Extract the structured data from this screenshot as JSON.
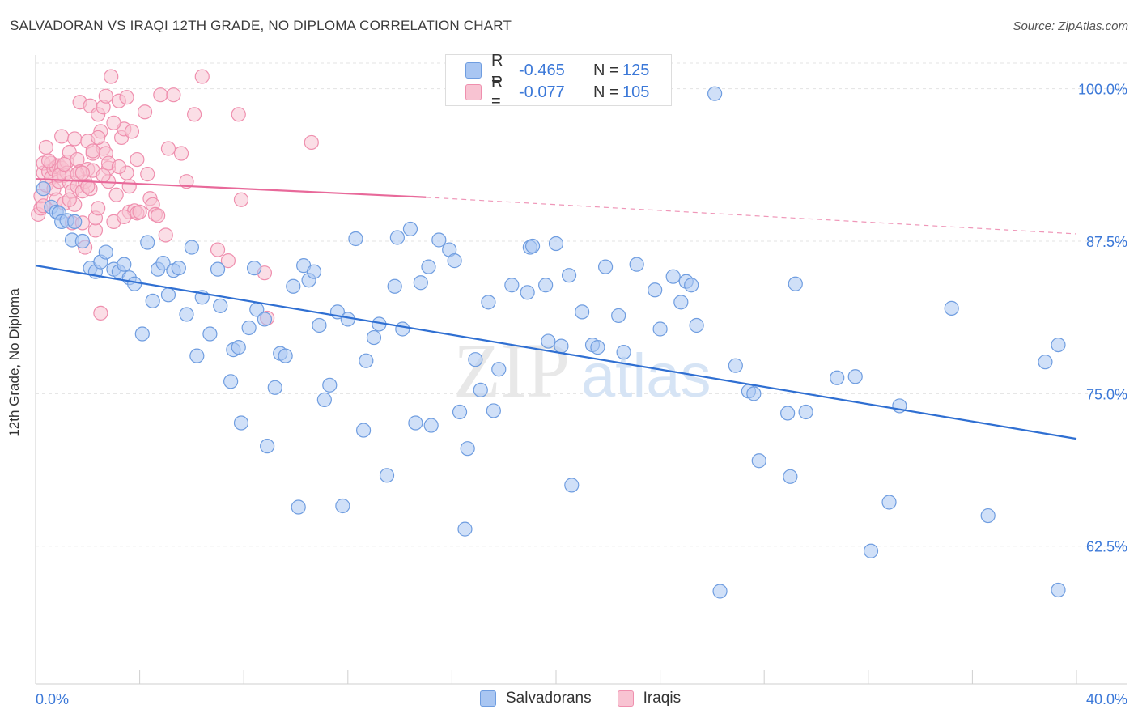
{
  "title": "SALVADORAN VS IRAQI 12TH GRADE, NO DIPLOMA CORRELATION CHART",
  "source": "Source: ZipAtlas.com",
  "watermark": {
    "zip": "ZIP",
    "atlas": "atlas"
  },
  "legend": {
    "rows": [
      {
        "r_label": "R =",
        "r_value": "-0.465",
        "n_label": "N =",
        "n_value": "125",
        "color": "#a9c6f2",
        "border": "#6f9de0"
      },
      {
        "r_label": "R =",
        "r_value": "-0.077",
        "n_label": "N =",
        "n_value": "105",
        "color": "#f8c3d2",
        "border": "#ef8fae"
      }
    ]
  },
  "bottom_legend": [
    {
      "label": "Salvadorans",
      "color": "#a9c6f2",
      "border": "#6f9de0"
    },
    {
      "label": "Iraqis",
      "color": "#f8c3d2",
      "border": "#ef8fae"
    }
  ],
  "chart_data": {
    "type": "scatter",
    "ylabel": "12th Grade, No Diploma",
    "xlim": [
      0,
      40
    ],
    "ylim": [
      51.2,
      102.1
    ],
    "x_tick_labels": [
      "0.0%",
      "40.0%"
    ],
    "y_ticks": [
      {
        "value": 100.0,
        "label": "100.0%"
      },
      {
        "value": 87.5,
        "label": "87.5%"
      },
      {
        "value": 75.0,
        "label": "75.0%"
      },
      {
        "value": 62.5,
        "label": "62.5%"
      }
    ],
    "grid": true,
    "series": [
      {
        "name": "Salvadorans",
        "color": "#6f9de0",
        "fill": "#a9c6f2",
        "trend": {
          "x0": 0,
          "y0": 85.5,
          "x1": 40,
          "y1": 71.3,
          "dashed_to": null
        },
        "points": [
          [
            0.3,
            91.8
          ],
          [
            0.6,
            90.3
          ],
          [
            0.8,
            89.9
          ],
          [
            0.9,
            89.8
          ],
          [
            1.0,
            89.1
          ],
          [
            1.2,
            89.2
          ],
          [
            1.4,
            87.6
          ],
          [
            1.5,
            89.1
          ],
          [
            1.8,
            87.5
          ],
          [
            2.1,
            85.3
          ],
          [
            2.3,
            85.0
          ],
          [
            2.5,
            85.8
          ],
          [
            2.7,
            86.6
          ],
          [
            3.0,
            85.2
          ],
          [
            3.2,
            85.0
          ],
          [
            3.4,
            85.6
          ],
          [
            3.6,
            84.5
          ],
          [
            3.8,
            84.0
          ],
          [
            4.1,
            79.9
          ],
          [
            4.3,
            87.4
          ],
          [
            4.5,
            82.6
          ],
          [
            4.7,
            85.2
          ],
          [
            4.9,
            85.7
          ],
          [
            5.1,
            83.1
          ],
          [
            5.3,
            85.1
          ],
          [
            5.5,
            85.3
          ],
          [
            5.8,
            81.5
          ],
          [
            6.0,
            87.0
          ],
          [
            6.2,
            78.1
          ],
          [
            6.4,
            82.9
          ],
          [
            6.7,
            79.9
          ],
          [
            7.0,
            85.2
          ],
          [
            7.1,
            82.2
          ],
          [
            7.5,
            76.0
          ],
          [
            7.6,
            78.6
          ],
          [
            7.8,
            78.8
          ],
          [
            7.9,
            72.6
          ],
          [
            8.2,
            80.4
          ],
          [
            8.4,
            85.3
          ],
          [
            8.5,
            81.9
          ],
          [
            8.8,
            81.1
          ],
          [
            8.9,
            70.7
          ],
          [
            9.2,
            75.5
          ],
          [
            9.4,
            78.3
          ],
          [
            9.6,
            78.1
          ],
          [
            9.9,
            83.8
          ],
          [
            10.1,
            65.7
          ],
          [
            10.3,
            85.5
          ],
          [
            10.5,
            84.3
          ],
          [
            10.7,
            85.0
          ],
          [
            10.9,
            80.6
          ],
          [
            11.1,
            74.5
          ],
          [
            11.3,
            75.7
          ],
          [
            11.6,
            81.7
          ],
          [
            11.8,
            65.8
          ],
          [
            12.0,
            81.1
          ],
          [
            12.3,
            87.7
          ],
          [
            12.6,
            72.0
          ],
          [
            12.7,
            77.7
          ],
          [
            13.0,
            79.6
          ],
          [
            13.2,
            80.7
          ],
          [
            13.5,
            68.3
          ],
          [
            13.8,
            83.8
          ],
          [
            13.9,
            87.8
          ],
          [
            14.1,
            80.3
          ],
          [
            14.4,
            88.5
          ],
          [
            14.6,
            72.6
          ],
          [
            14.8,
            84.1
          ],
          [
            15.1,
            85.4
          ],
          [
            15.2,
            72.4
          ],
          [
            15.5,
            87.6
          ],
          [
            15.9,
            86.8
          ],
          [
            16.1,
            85.9
          ],
          [
            16.3,
            73.5
          ],
          [
            16.5,
            63.9
          ],
          [
            16.6,
            70.5
          ],
          [
            16.9,
            77.8
          ],
          [
            17.1,
            75.3
          ],
          [
            17.4,
            82.5
          ],
          [
            17.6,
            73.6
          ],
          [
            17.8,
            77.0
          ],
          [
            18.3,
            83.9
          ],
          [
            18.9,
            83.3
          ],
          [
            19.0,
            87.0
          ],
          [
            19.1,
            87.1
          ],
          [
            19.6,
            83.9
          ],
          [
            19.7,
            79.3
          ],
          [
            20.0,
            87.3
          ],
          [
            20.2,
            78.9
          ],
          [
            20.5,
            84.7
          ],
          [
            20.6,
            67.5
          ],
          [
            21.0,
            81.7
          ],
          [
            21.4,
            79.0
          ],
          [
            21.6,
            78.8
          ],
          [
            21.9,
            85.4
          ],
          [
            22.4,
            81.4
          ],
          [
            22.6,
            78.4
          ],
          [
            23.1,
            85.6
          ],
          [
            23.8,
            83.5
          ],
          [
            24.0,
            80.3
          ],
          [
            24.5,
            84.6
          ],
          [
            24.8,
            82.5
          ],
          [
            25.0,
            84.2
          ],
          [
            25.2,
            83.9
          ],
          [
            25.4,
            80.6
          ],
          [
            26.1,
            99.6
          ],
          [
            26.3,
            58.8
          ],
          [
            26.9,
            77.3
          ],
          [
            27.4,
            75.2
          ],
          [
            27.6,
            75.0
          ],
          [
            27.8,
            69.5
          ],
          [
            28.9,
            73.4
          ],
          [
            29.0,
            68.2
          ],
          [
            29.2,
            84.0
          ],
          [
            29.6,
            73.5
          ],
          [
            30.8,
            76.3
          ],
          [
            31.5,
            76.4
          ],
          [
            32.1,
            62.1
          ],
          [
            32.8,
            66.1
          ],
          [
            33.2,
            74.0
          ],
          [
            35.2,
            82.0
          ],
          [
            36.6,
            65.0
          ],
          [
            38.8,
            77.6
          ],
          [
            39.3,
            79.0
          ],
          [
            39.3,
            58.9
          ]
        ]
      },
      {
        "name": "Iraqis",
        "color": "#ef8fae",
        "fill": "#f8c3d2",
        "trend": {
          "x0": 0,
          "y0": 92.6,
          "x1": 15,
          "y1": 91.1,
          "dashed_to": {
            "x": 40,
            "y": 88.1
          }
        },
        "points": [
          [
            0.1,
            89.7
          ],
          [
            0.2,
            90.2
          ],
          [
            0.2,
            91.2
          ],
          [
            0.3,
            93.1
          ],
          [
            0.3,
            93.9
          ],
          [
            0.4,
            92.1
          ],
          [
            0.4,
            95.2
          ],
          [
            0.5,
            93.2
          ],
          [
            0.6,
            92.7
          ],
          [
            0.6,
            93.9
          ],
          [
            0.7,
            91.8
          ],
          [
            0.7,
            93.4
          ],
          [
            0.8,
            90.9
          ],
          [
            0.8,
            93.6
          ],
          [
            0.9,
            92.4
          ],
          [
            0.9,
            93.7
          ],
          [
            1.0,
            96.1
          ],
          [
            1.0,
            93.5
          ],
          [
            1.1,
            90.6
          ],
          [
            1.1,
            92.9
          ],
          [
            1.2,
            94.0
          ],
          [
            1.2,
            93.1
          ],
          [
            1.3,
            92.3
          ],
          [
            1.3,
            94.8
          ],
          [
            1.4,
            91.6
          ],
          [
            1.4,
            89.0
          ],
          [
            1.5,
            90.5
          ],
          [
            1.5,
            95.9
          ],
          [
            1.6,
            94.2
          ],
          [
            1.6,
            92.0
          ],
          [
            1.7,
            98.9
          ],
          [
            1.7,
            93.2
          ],
          [
            1.8,
            89.0
          ],
          [
            1.8,
            91.6
          ],
          [
            1.9,
            92.4
          ],
          [
            1.9,
            87.0
          ],
          [
            2.0,
            95.7
          ],
          [
            2.0,
            93.4
          ],
          [
            2.1,
            98.6
          ],
          [
            2.1,
            91.8
          ],
          [
            2.2,
            93.3
          ],
          [
            2.2,
            94.7
          ],
          [
            2.3,
            88.4
          ],
          [
            2.3,
            89.4
          ],
          [
            2.4,
            97.9
          ],
          [
            2.4,
            90.2
          ],
          [
            2.5,
            81.6
          ],
          [
            2.5,
            96.5
          ],
          [
            2.6,
            95.1
          ],
          [
            2.6,
            98.5
          ],
          [
            2.7,
            99.4
          ],
          [
            2.7,
            94.7
          ],
          [
            2.8,
            92.4
          ],
          [
            2.8,
            93.5
          ],
          [
            2.9,
            101.0
          ],
          [
            3.0,
            89.1
          ],
          [
            3.1,
            91.3
          ],
          [
            3.2,
            99.0
          ],
          [
            3.3,
            96.0
          ],
          [
            3.4,
            96.7
          ],
          [
            3.5,
            99.3
          ],
          [
            3.5,
            93.1
          ],
          [
            3.6,
            92.0
          ],
          [
            3.6,
            89.9
          ],
          [
            3.7,
            96.5
          ],
          [
            3.8,
            90.0
          ],
          [
            3.9,
            89.8
          ],
          [
            4.0,
            89.9
          ],
          [
            4.2,
            98.1
          ],
          [
            4.3,
            93.0
          ],
          [
            4.4,
            91.0
          ],
          [
            4.5,
            90.5
          ],
          [
            4.6,
            89.7
          ],
          [
            4.7,
            89.6
          ],
          [
            4.8,
            99.5
          ],
          [
            5.0,
            88.0
          ],
          [
            5.1,
            95.1
          ],
          [
            5.3,
            99.5
          ],
          [
            5.6,
            94.7
          ],
          [
            5.8,
            92.4
          ],
          [
            6.1,
            97.9
          ],
          [
            6.4,
            101.0
          ],
          [
            7.0,
            86.8
          ],
          [
            7.4,
            85.9
          ],
          [
            7.8,
            97.9
          ],
          [
            7.9,
            90.9
          ],
          [
            8.8,
            84.9
          ],
          [
            8.9,
            81.2
          ],
          [
            10.6,
            95.6
          ],
          [
            0.3,
            90.4
          ],
          [
            0.5,
            94.1
          ],
          [
            0.9,
            92.9
          ],
          [
            1.1,
            93.8
          ],
          [
            1.3,
            90.9
          ],
          [
            1.6,
            93.0
          ],
          [
            1.8,
            93.1
          ],
          [
            2.0,
            92.0
          ],
          [
            2.2,
            94.9
          ],
          [
            2.4,
            96.0
          ],
          [
            2.6,
            92.9
          ],
          [
            2.8,
            93.9
          ],
          [
            3.0,
            97.2
          ],
          [
            3.2,
            93.6
          ],
          [
            3.4,
            89.5
          ],
          [
            3.9,
            94.2
          ]
        ]
      }
    ]
  }
}
